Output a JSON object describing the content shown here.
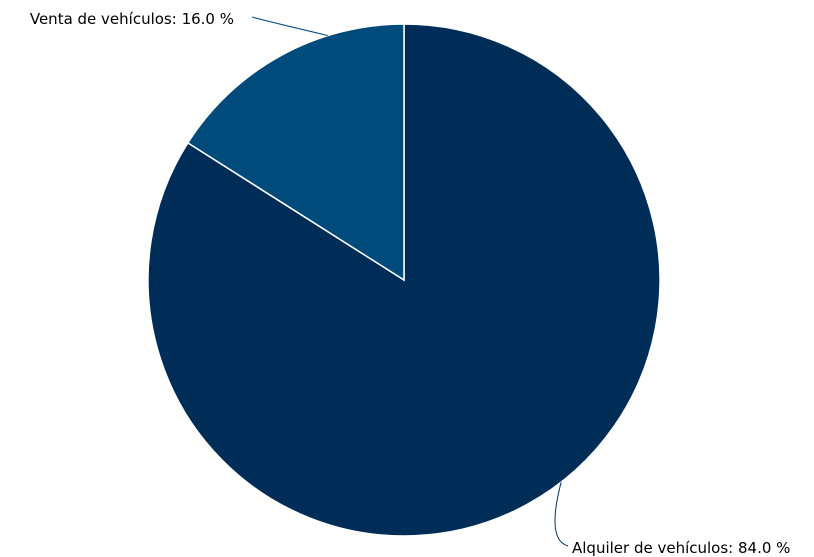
{
  "chart_data": {
    "type": "pie",
    "start": "top",
    "direction": "clockwise",
    "slices": [
      {
        "name": "Alquiler de vehículos",
        "value": 84.0,
        "label": "Alquiler de vehículos: 84.0 %",
        "color": "#002d58"
      },
      {
        "name": "Venta de vehículos",
        "value": 16.0,
        "label": "Venta de vehículos: 16.0 %",
        "color": "#004a7c"
      }
    ]
  }
}
